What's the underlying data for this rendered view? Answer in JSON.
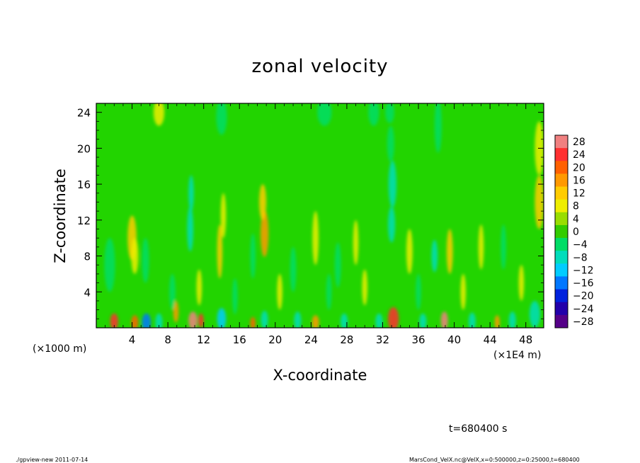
{
  "chart_data": {
    "type": "heatmap",
    "title": "zonal velocity",
    "xlabel": "X-coordinate",
    "ylabel": "Z-coordinate",
    "x_unit_left": "(×1000 m)",
    "x_unit_right": "(×1E4 m)",
    "xlim": [
      0,
      50
    ],
    "ylim": [
      0,
      25
    ],
    "x_ticks": [
      4,
      8,
      12,
      16,
      20,
      24,
      28,
      32,
      36,
      40,
      44,
      48
    ],
    "x_tick_labels": [
      "4",
      "8",
      "12",
      "16",
      "20",
      "24",
      "28",
      "32",
      "36",
      "40",
      "44",
      "48"
    ],
    "y_ticks": [
      4,
      8,
      12,
      16,
      20,
      24
    ],
    "y_tick_labels": [
      "4",
      "8",
      "12",
      "16",
      "20",
      "24"
    ],
    "colorbar_levels": [
      28,
      24,
      20,
      16,
      12,
      8,
      4,
      0,
      -4,
      -8,
      -12,
      -16,
      -20,
      -24,
      -28
    ],
    "colorbar_labels": [
      "28",
      "24",
      "20",
      "16",
      "12",
      "8",
      "4",
      "0",
      "−4",
      "−8",
      "−12",
      "−16",
      "−20",
      "−24",
      "−28"
    ],
    "colorbar_colors": [
      "#f08080",
      "#ff3030",
      "#ff6000",
      "#ff9900",
      "#ffcc00",
      "#eeee00",
      "#99dd00",
      "#33cc00",
      "#00dd66",
      "#00ddbb",
      "#00ccff",
      "#0077ff",
      "#0022dd",
      "#2200aa",
      "#550088"
    ],
    "field_background_color": "#22d400",
    "annotation_time": "t=680400 s",
    "footer_left": "./gpview-new   2011-07-14",
    "footer_right": "MarsCond_VelX.nc@VelX,x=0:500000,z=0:25000,t=680400",
    "features": [
      {
        "x": 2.0,
        "z": 0.7,
        "value": 20,
        "sx": 0.45,
        "sz": 0.9
      },
      {
        "x": 4.3,
        "z": 0.6,
        "value": 16,
        "sx": 0.4,
        "sz": 0.8
      },
      {
        "x": 5.6,
        "z": 0.6,
        "value": -20,
        "sx": 0.5,
        "sz": 1.0
      },
      {
        "x": 7.0,
        "z": 0.6,
        "value": -12,
        "sx": 0.4,
        "sz": 1.0
      },
      {
        "x": 8.9,
        "z": 1.8,
        "value": 12,
        "sx": 0.3,
        "sz": 1.2
      },
      {
        "x": 10.8,
        "z": 0.8,
        "value": 24,
        "sx": 0.5,
        "sz": 1.0
      },
      {
        "x": 11.7,
        "z": 0.8,
        "value": 20,
        "sx": 0.3,
        "sz": 0.8
      },
      {
        "x": 14.0,
        "z": 1.0,
        "value": -16,
        "sx": 0.5,
        "sz": 1.2
      },
      {
        "x": 17.5,
        "z": 0.5,
        "value": 16,
        "sx": 0.3,
        "sz": 0.7
      },
      {
        "x": 18.8,
        "z": 0.9,
        "value": -12,
        "sx": 0.4,
        "sz": 1.0
      },
      {
        "x": 22.5,
        "z": 0.8,
        "value": -12,
        "sx": 0.4,
        "sz": 1.0
      },
      {
        "x": 24.5,
        "z": 0.6,
        "value": 12,
        "sx": 0.4,
        "sz": 0.8
      },
      {
        "x": 27.7,
        "z": 0.7,
        "value": -12,
        "sx": 0.4,
        "sz": 0.9
      },
      {
        "x": 31.6,
        "z": 0.7,
        "value": -12,
        "sx": 0.4,
        "sz": 0.9
      },
      {
        "x": 33.2,
        "z": 1.0,
        "value": 20,
        "sx": 0.6,
        "sz": 1.3
      },
      {
        "x": 36.5,
        "z": 0.7,
        "value": -12,
        "sx": 0.4,
        "sz": 0.9
      },
      {
        "x": 38.9,
        "z": 0.8,
        "value": 24,
        "sx": 0.4,
        "sz": 1.0
      },
      {
        "x": 42.0,
        "z": 0.7,
        "value": -12,
        "sx": 0.4,
        "sz": 1.0
      },
      {
        "x": 44.8,
        "z": 0.6,
        "value": 12,
        "sx": 0.3,
        "sz": 0.8
      },
      {
        "x": 46.5,
        "z": 0.8,
        "value": -12,
        "sx": 0.4,
        "sz": 1.0
      },
      {
        "x": 49.0,
        "z": 1.5,
        "value": -10,
        "sx": 0.6,
        "sz": 1.5
      },
      {
        "x": 4.0,
        "z": 10.0,
        "value": 8,
        "sx": 0.5,
        "sz": 2.5
      },
      {
        "x": 4.3,
        "z": 8.0,
        "value": 6,
        "sx": 0.4,
        "sz": 2.0
      },
      {
        "x": 1.5,
        "z": 7.0,
        "value": -6,
        "sx": 0.6,
        "sz": 3.0
      },
      {
        "x": 5.5,
        "z": 7.5,
        "value": -6,
        "sx": 0.4,
        "sz": 2.5
      },
      {
        "x": 10.5,
        "z": 11.0,
        "value": -10,
        "sx": 0.35,
        "sz": 2.5
      },
      {
        "x": 10.6,
        "z": 15.0,
        "value": -9,
        "sx": 0.3,
        "sz": 2.0
      },
      {
        "x": 13.8,
        "z": 8.5,
        "value": 8,
        "sx": 0.3,
        "sz": 3.0
      },
      {
        "x": 14.2,
        "z": 12.5,
        "value": 6,
        "sx": 0.3,
        "sz": 2.5
      },
      {
        "x": 18.8,
        "z": 10.5,
        "value": 14,
        "sx": 0.45,
        "sz": 2.6
      },
      {
        "x": 18.6,
        "z": 14.0,
        "value": 8,
        "sx": 0.4,
        "sz": 2.0
      },
      {
        "x": 17.5,
        "z": 8.0,
        "value": -6,
        "sx": 0.3,
        "sz": 2.5
      },
      {
        "x": 22.0,
        "z": 6.5,
        "value": -7,
        "sx": 0.35,
        "sz": 2.5
      },
      {
        "x": 24.5,
        "z": 10.0,
        "value": 7,
        "sx": 0.35,
        "sz": 3.0
      },
      {
        "x": 27.0,
        "z": 7.0,
        "value": -8,
        "sx": 0.35,
        "sz": 2.5
      },
      {
        "x": 29.0,
        "z": 9.5,
        "value": 7,
        "sx": 0.3,
        "sz": 2.5
      },
      {
        "x": 33.1,
        "z": 16.0,
        "value": -12,
        "sx": 0.45,
        "sz": 2.6
      },
      {
        "x": 33.0,
        "z": 11.5,
        "value": -10,
        "sx": 0.4,
        "sz": 2.0
      },
      {
        "x": 32.9,
        "z": 20.5,
        "value": -7,
        "sx": 0.4,
        "sz": 2.0
      },
      {
        "x": 32.8,
        "z": 24.0,
        "value": -8,
        "sx": 0.5,
        "sz": 1.2
      },
      {
        "x": 35.0,
        "z": 8.5,
        "value": 7,
        "sx": 0.35,
        "sz": 2.5
      },
      {
        "x": 37.8,
        "z": 8.0,
        "value": -12,
        "sx": 0.35,
        "sz": 1.8
      },
      {
        "x": 38.2,
        "z": 22.5,
        "value": -6,
        "sx": 0.4,
        "sz": 3.0
      },
      {
        "x": 39.5,
        "z": 8.5,
        "value": 9,
        "sx": 0.35,
        "sz": 2.5
      },
      {
        "x": 43.0,
        "z": 9.0,
        "value": 7,
        "sx": 0.3,
        "sz": 2.5
      },
      {
        "x": 45.5,
        "z": 9.0,
        "value": -6,
        "sx": 0.3,
        "sz": 2.5
      },
      {
        "x": 49.5,
        "z": 14.0,
        "value": 9,
        "sx": 0.5,
        "sz": 3.0
      },
      {
        "x": 49.5,
        "z": 20.0,
        "value": 6,
        "sx": 0.5,
        "sz": 3.0
      },
      {
        "x": 14.0,
        "z": 23.5,
        "value": -5,
        "sx": 0.6,
        "sz": 2.0
      },
      {
        "x": 25.5,
        "z": 24.0,
        "value": -6,
        "sx": 0.8,
        "sz": 1.5
      },
      {
        "x": 31.0,
        "z": 24.0,
        "value": -6,
        "sx": 0.6,
        "sz": 1.5
      },
      {
        "x": 7.0,
        "z": 24.0,
        "value": 5,
        "sx": 0.6,
        "sz": 1.5
      },
      {
        "x": 8.5,
        "z": 4.0,
        "value": -6,
        "sx": 0.35,
        "sz": 2.0
      },
      {
        "x": 11.5,
        "z": 4.5,
        "value": 6,
        "sx": 0.3,
        "sz": 2.0
      },
      {
        "x": 15.5,
        "z": 3.5,
        "value": -6,
        "sx": 0.3,
        "sz": 2.0
      },
      {
        "x": 20.5,
        "z": 4.0,
        "value": 7,
        "sx": 0.3,
        "sz": 2.0
      },
      {
        "x": 26.0,
        "z": 4.0,
        "value": -6,
        "sx": 0.3,
        "sz": 2.0
      },
      {
        "x": 30.0,
        "z": 4.5,
        "value": 6,
        "sx": 0.3,
        "sz": 2.0
      },
      {
        "x": 36.0,
        "z": 4.0,
        "value": -6,
        "sx": 0.3,
        "sz": 2.0
      },
      {
        "x": 41.0,
        "z": 4.0,
        "value": 6,
        "sx": 0.3,
        "sz": 2.0
      },
      {
        "x": 47.5,
        "z": 5.0,
        "value": 6,
        "sx": 0.3,
        "sz": 2.0
      }
    ]
  }
}
